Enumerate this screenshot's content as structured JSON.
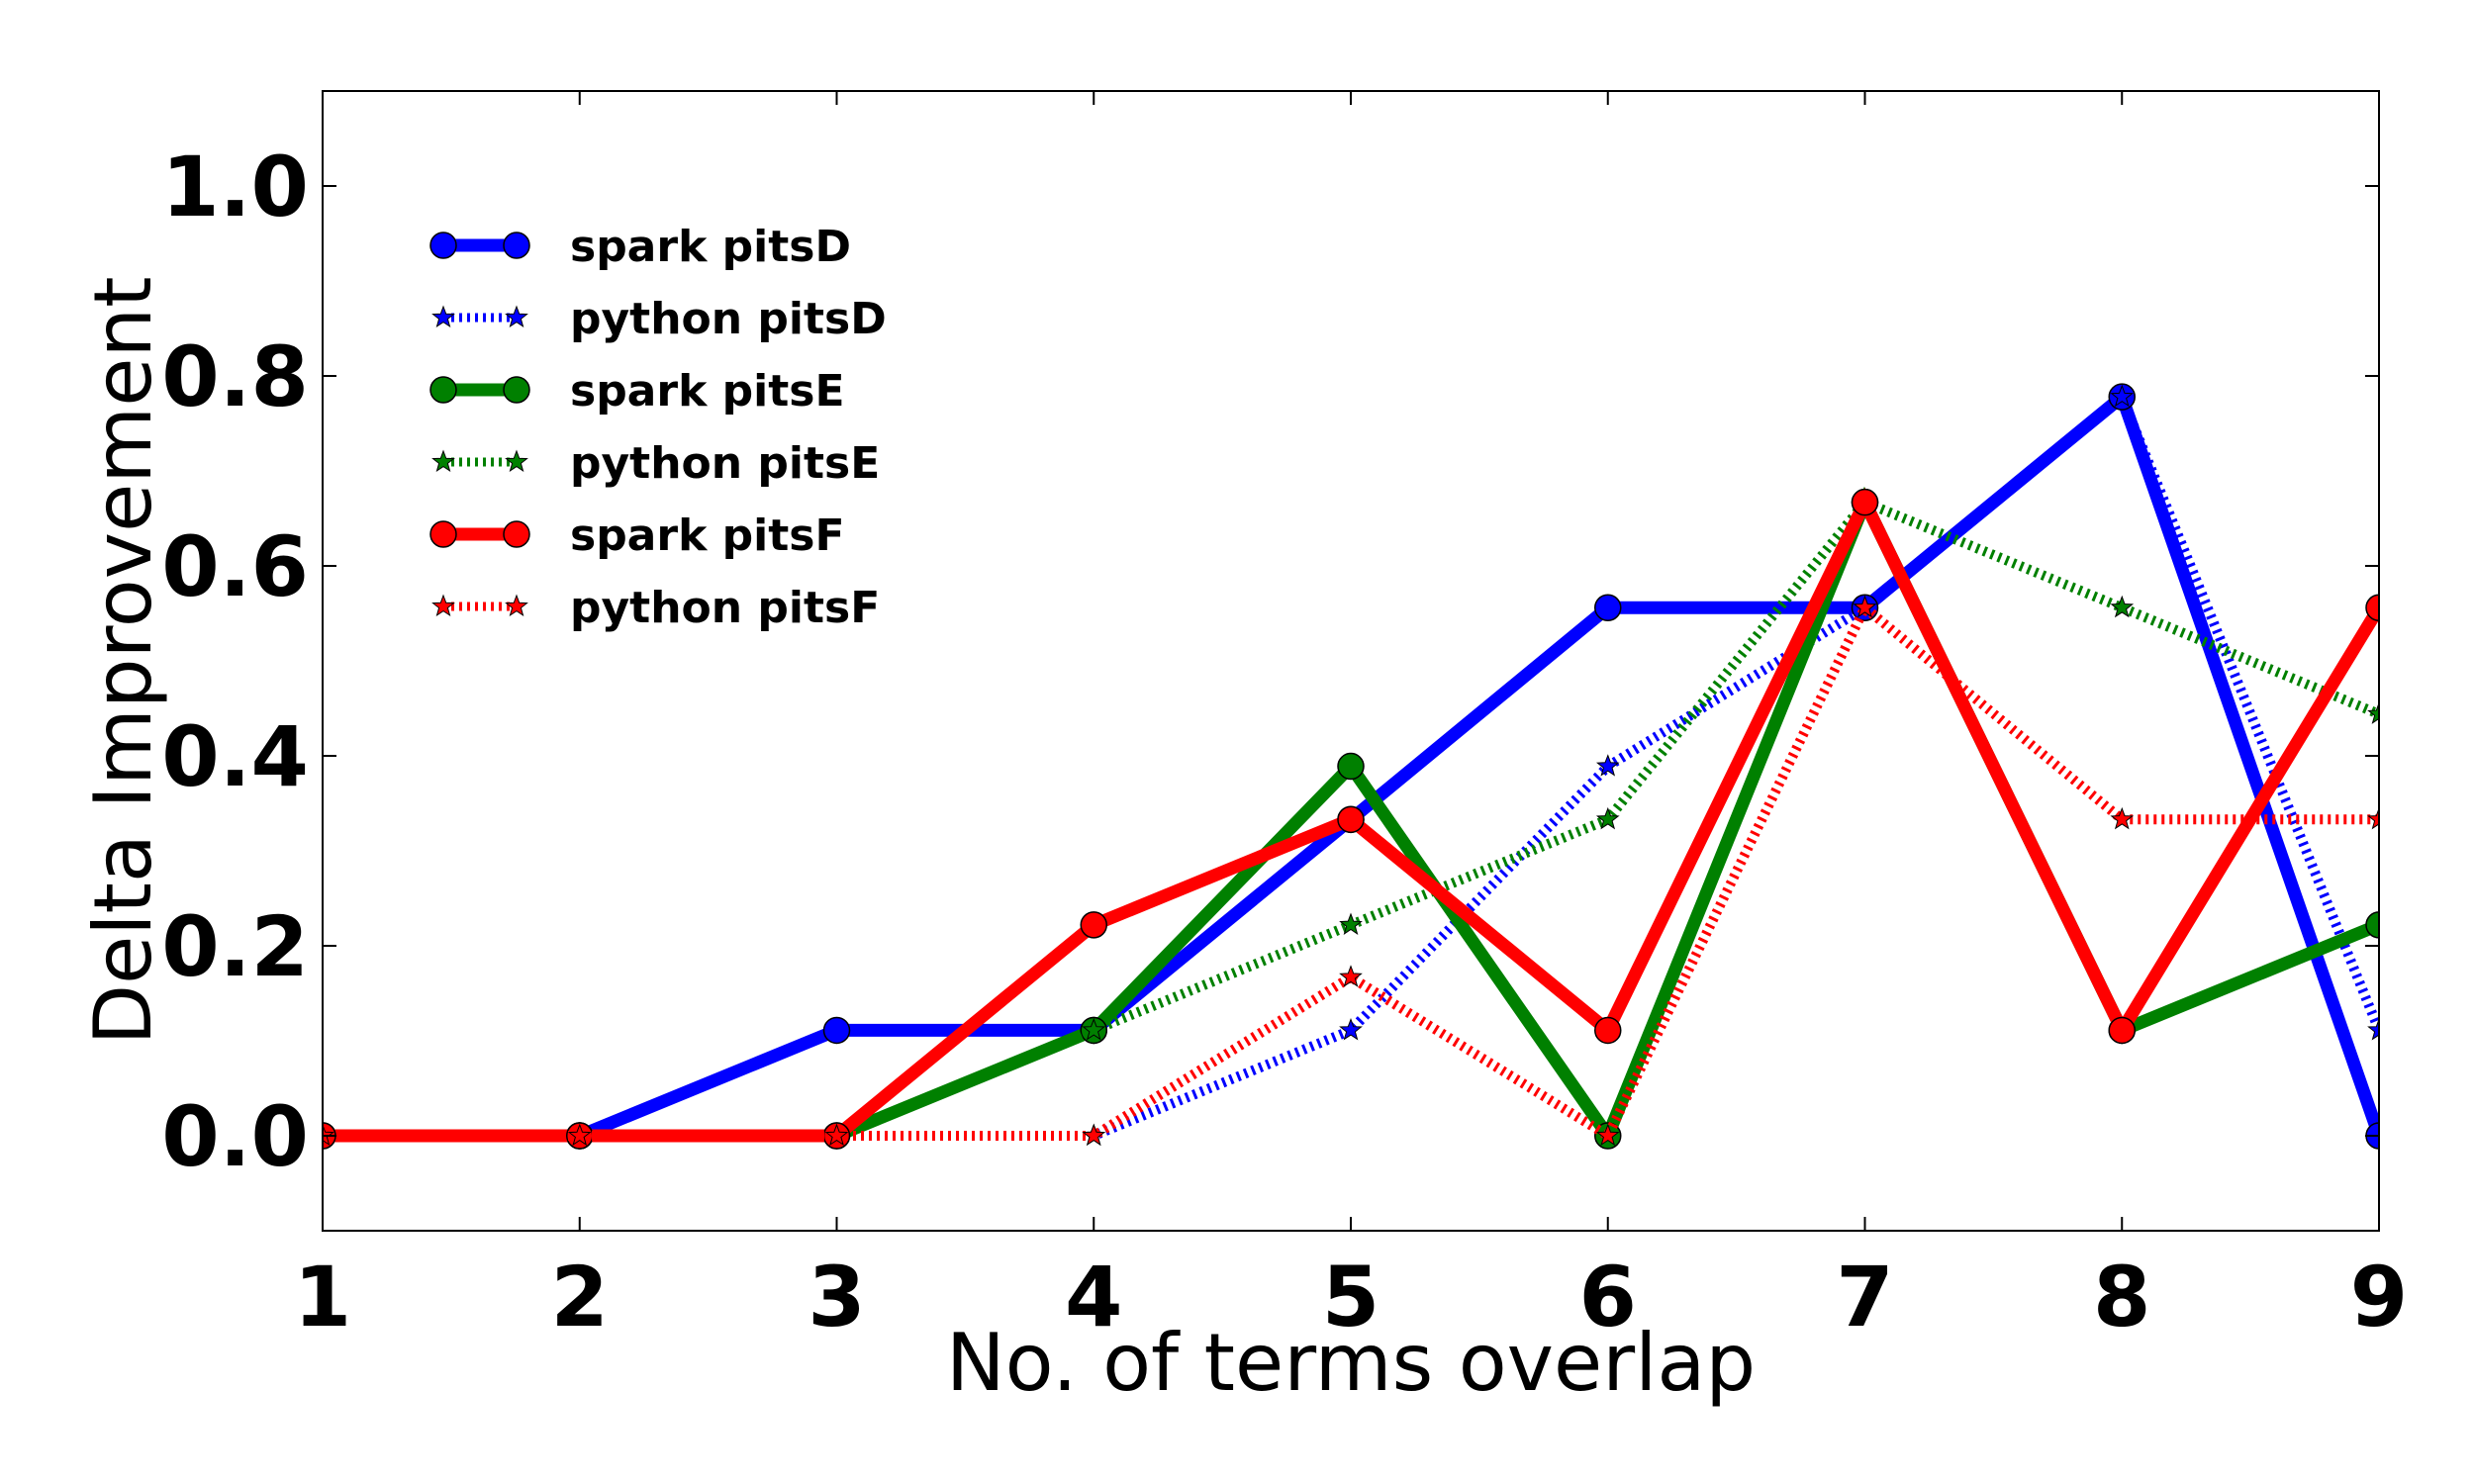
{
  "chart_data": {
    "type": "line",
    "xlabel": "No. of terms overlap",
    "ylabel": "Delta Improvement",
    "x": [
      1,
      2,
      3,
      4,
      5,
      6,
      7,
      8,
      9
    ],
    "xlim": [
      1,
      9
    ],
    "ylim": [
      -0.1,
      1.1
    ],
    "xticks": [
      "1",
      "2",
      "3",
      "4",
      "5",
      "6",
      "7",
      "8",
      "9"
    ],
    "yticks": [
      "0.0",
      "0.2",
      "0.4",
      "0.6",
      "0.8",
      "1.0"
    ],
    "grid": false,
    "legend_position": "upper-left",
    "series": [
      {
        "name": "spark pitsD",
        "color": "#0000ff",
        "style": "solid",
        "marker": "circle",
        "values": [
          0.0,
          0.0,
          0.111,
          0.111,
          0.333,
          0.556,
          0.556,
          0.778,
          0.0
        ]
      },
      {
        "name": "python pitsD",
        "color": "#0000ff",
        "style": "dotted",
        "marker": "star",
        "values": [
          0.0,
          0.0,
          0.0,
          0.0,
          0.111,
          0.389,
          0.556,
          0.778,
          0.111
        ]
      },
      {
        "name": "spark pitsE",
        "color": "#008000",
        "style": "solid",
        "marker": "circle",
        "values": [
          0.0,
          0.0,
          0.0,
          0.111,
          0.389,
          0.0,
          0.667,
          0.111,
          0.222
        ]
      },
      {
        "name": "python pitsE",
        "color": "#008000",
        "style": "dotted",
        "marker": "star",
        "values": [
          0.0,
          0.0,
          0.0,
          0.111,
          0.222,
          0.333,
          0.667,
          0.556,
          0.444
        ]
      },
      {
        "name": "spark pitsF",
        "color": "#ff0000",
        "style": "solid",
        "marker": "circle",
        "values": [
          0.0,
          0.0,
          0.0,
          0.222,
          0.333,
          0.111,
          0.667,
          0.111,
          0.556
        ]
      },
      {
        "name": "python pitsF",
        "color": "#ff0000",
        "style": "dotted",
        "marker": "star",
        "values": [
          0.0,
          0.0,
          0.0,
          0.0,
          0.167,
          0.0,
          0.556,
          0.333,
          0.333
        ]
      }
    ]
  }
}
